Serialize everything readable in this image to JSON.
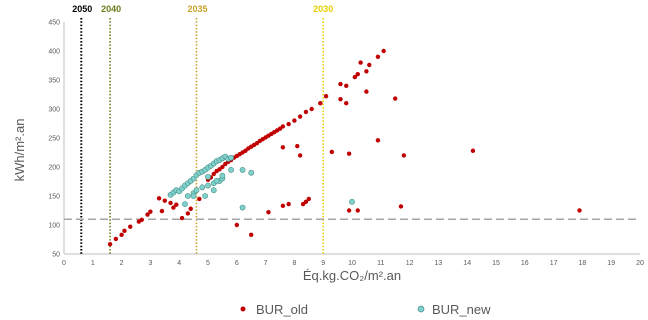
{
  "chart_data": {
    "type": "scatter",
    "xlabel": "Éq.kg.CO₂/m².an",
    "ylabel": "kWh/m².an",
    "xlim": [
      0,
      20
    ],
    "ylim": [
      50,
      450
    ],
    "x_ticks": [
      0,
      1,
      2,
      3,
      4,
      5,
      6,
      7,
      8,
      9,
      10,
      11,
      12,
      13,
      14,
      15,
      16,
      17,
      18,
      19,
      20
    ],
    "y_ticks": [
      50,
      100,
      150,
      200,
      250,
      300,
      350,
      400,
      450
    ],
    "grid": false,
    "legend_position": "bottom",
    "reference_lines": [
      {
        "label": "2050",
        "axis": "x",
        "value": 0.6,
        "color": "#000000",
        "style": "dotted"
      },
      {
        "label": "2040",
        "axis": "x",
        "value": 1.6,
        "color": "#6b7a1a",
        "style": "dotted"
      },
      {
        "label": "2035",
        "axis": "x",
        "value": 4.6,
        "color": "#c9a227",
        "style": "dotted"
      },
      {
        "label": "2030",
        "axis": "x",
        "value": 9.0,
        "color": "#e6d000",
        "style": "dotted"
      },
      {
        "label": "",
        "axis": "y",
        "value": 110,
        "color": "#a6a6a6",
        "style": "dashed"
      }
    ],
    "series": [
      {
        "name": "BUR_old",
        "color": "#c00000",
        "points": [
          [
            1.6,
            67
          ],
          [
            1.8,
            76
          ],
          [
            2.0,
            83
          ],
          [
            2.1,
            90
          ],
          [
            2.3,
            97
          ],
          [
            2.6,
            106
          ],
          [
            2.7,
            109
          ],
          [
            2.9,
            118
          ],
          [
            3.0,
            123
          ],
          [
            3.4,
            124
          ],
          [
            3.3,
            146
          ],
          [
            3.5,
            142
          ],
          [
            3.7,
            138
          ],
          [
            3.8,
            130
          ],
          [
            3.9,
            135
          ],
          [
            4.1,
            112
          ],
          [
            4.3,
            120
          ],
          [
            4.4,
            128
          ],
          [
            4.7,
            145
          ],
          [
            4.8,
            165
          ],
          [
            5.0,
            178
          ],
          [
            5.1,
            182
          ],
          [
            5.2,
            188
          ],
          [
            5.3,
            193
          ],
          [
            5.4,
            196
          ],
          [
            5.5,
            200
          ],
          [
            5.6,
            205
          ],
          [
            5.7,
            209
          ],
          [
            5.8,
            212
          ],
          [
            5.9,
            216
          ],
          [
            6.0,
            219
          ],
          [
            6.1,
            222
          ],
          [
            6.2,
            225
          ],
          [
            6.3,
            228
          ],
          [
            6.4,
            232
          ],
          [
            6.5,
            235
          ],
          [
            6.6,
            238
          ],
          [
            6.7,
            241
          ],
          [
            6.8,
            245
          ],
          [
            6.9,
            248
          ],
          [
            7.0,
            251
          ],
          [
            7.1,
            254
          ],
          [
            7.2,
            257
          ],
          [
            7.3,
            260
          ],
          [
            7.4,
            263
          ],
          [
            7.5,
            266
          ],
          [
            7.6,
            270
          ],
          [
            7.8,
            274
          ],
          [
            8.0,
            280
          ],
          [
            8.2,
            287
          ],
          [
            8.4,
            295
          ],
          [
            8.6,
            300
          ],
          [
            8.9,
            310
          ],
          [
            9.1,
            322
          ],
          [
            7.6,
            234
          ],
          [
            8.2,
            220
          ],
          [
            8.1,
            236
          ],
          [
            6.0,
            100
          ],
          [
            6.5,
            83
          ],
          [
            7.1,
            122
          ],
          [
            7.6,
            133
          ],
          [
            7.8,
            136
          ],
          [
            8.3,
            136
          ],
          [
            8.4,
            140
          ],
          [
            8.5,
            145
          ],
          [
            9.9,
            125
          ],
          [
            10.2,
            125
          ],
          [
            9.3,
            226
          ],
          [
            9.9,
            223
          ],
          [
            10.1,
            355
          ],
          [
            10.2,
            360
          ],
          [
            10.3,
            380
          ],
          [
            10.5,
            365
          ],
          [
            10.6,
            376
          ],
          [
            10.9,
            390
          ],
          [
            11.1,
            400
          ],
          [
            9.6,
            343
          ],
          [
            9.8,
            340
          ],
          [
            10.5,
            330
          ],
          [
            9.6,
            317
          ],
          [
            9.8,
            310
          ],
          [
            10.9,
            246
          ],
          [
            11.5,
            318
          ],
          [
            11.8,
            220
          ],
          [
            11.7,
            132
          ],
          [
            14.2,
            228
          ],
          [
            17.9,
            125
          ]
        ]
      },
      {
        "name": "BUR_new",
        "color": "#7fd1cc",
        "points": [
          [
            3.7,
            152
          ],
          [
            3.8,
            156
          ],
          [
            3.9,
            160
          ],
          [
            4.0,
            158
          ],
          [
            4.1,
            163
          ],
          [
            4.2,
            168
          ],
          [
            4.3,
            172
          ],
          [
            4.4,
            176
          ],
          [
            4.5,
            180
          ],
          [
            4.6,
            186
          ],
          [
            4.7,
            190
          ],
          [
            4.8,
            192
          ],
          [
            4.9,
            195
          ],
          [
            5.0,
            199
          ],
          [
            5.1,
            202
          ],
          [
            5.2,
            206
          ],
          [
            5.3,
            210
          ],
          [
            5.4,
            212
          ],
          [
            5.5,
            215
          ],
          [
            5.6,
            218
          ],
          [
            5.7,
            214
          ],
          [
            5.8,
            216
          ],
          [
            4.3,
            150
          ],
          [
            4.5,
            155
          ],
          [
            4.6,
            160
          ],
          [
            4.8,
            165
          ],
          [
            5.0,
            168
          ],
          [
            5.2,
            172
          ],
          [
            5.4,
            176
          ],
          [
            5.5,
            180
          ],
          [
            4.9,
            150
          ],
          [
            5.2,
            160
          ],
          [
            5.5,
            185
          ],
          [
            5.8,
            195
          ],
          [
            6.2,
            195
          ],
          [
            4.2,
            136
          ],
          [
            4.5,
            150
          ],
          [
            5.0,
            183
          ],
          [
            5.3,
            176
          ],
          [
            6.2,
            130
          ],
          [
            6.5,
            190
          ],
          [
            10.0,
            140
          ]
        ]
      }
    ]
  }
}
